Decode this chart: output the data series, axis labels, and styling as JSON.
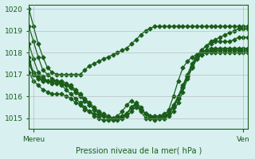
{
  "title": "Pression niveau de la mer( hPa )",
  "xlabel_left": "Mereu",
  "xlabel_right": "Ven",
  "ylim": [
    1014.5,
    1020.2
  ],
  "yticks": [
    1015,
    1016,
    1017,
    1018,
    1019,
    1020
  ],
  "bg_color": "#d8f0f0",
  "line_color": "#1a5e1a",
  "grid_color": "#aaaaaa",
  "n_points": 48,
  "series": [
    [
      1020.0,
      1019.2,
      1018.4,
      1017.8,
      1017.3,
      1017.1,
      1017.0,
      1017.0,
      1017.0,
      1017.0,
      1017.0,
      1017.0,
      1017.2,
      1017.4,
      1017.5,
      1017.6,
      1017.7,
      1017.8,
      1017.9,
      1018.0,
      1018.1,
      1018.2,
      1018.4,
      1018.6,
      1018.8,
      1019.0,
      1019.1,
      1019.2,
      1019.2,
      1019.2,
      1019.2,
      1019.2,
      1019.2,
      1019.2,
      1019.2,
      1019.2,
      1019.2,
      1019.2,
      1019.2,
      1019.2,
      1019.2,
      1019.2,
      1019.2,
      1019.2,
      1019.2,
      1019.2,
      1019.2,
      1019.2
    ],
    [
      1019.2,
      1018.5,
      1017.8,
      1017.2,
      1017.0,
      1016.8,
      1016.7,
      1016.5,
      1016.3,
      1016.1,
      1015.9,
      1015.7,
      1015.5,
      1015.3,
      1015.2,
      1015.1,
      1015.1,
      1015.0,
      1015.0,
      1015.0,
      1015.0,
      1015.2,
      1015.5,
      1015.7,
      1015.5,
      1015.2,
      1015.1,
      1015.0,
      1015.0,
      1015.0,
      1015.1,
      1015.3,
      1015.7,
      1016.2,
      1016.8,
      1017.3,
      1017.8,
      1018.1,
      1018.3,
      1018.5,
      1018.6,
      1018.7,
      1018.8,
      1018.9,
      1019.0,
      1019.1,
      1019.1,
      1019.1
    ],
    [
      1018.4,
      1017.7,
      1017.1,
      1016.9,
      1016.7,
      1016.6,
      1016.6,
      1016.6,
      1016.5,
      1016.4,
      1016.2,
      1016.0,
      1015.8,
      1015.6,
      1015.4,
      1015.2,
      1015.1,
      1015.0,
      1014.9,
      1014.9,
      1015.0,
      1015.1,
      1015.3,
      1015.5,
      1015.4,
      1015.2,
      1015.1,
      1015.1,
      1015.1,
      1015.2,
      1015.3,
      1015.6,
      1016.0,
      1016.5,
      1017.0,
      1017.5,
      1017.9,
      1018.1,
      1018.3,
      1018.4,
      1018.5,
      1018.5,
      1018.5,
      1018.5,
      1018.6,
      1018.7,
      1018.7,
      1018.7
    ],
    [
      1017.6,
      1017.1,
      1016.9,
      1016.8,
      1016.7,
      1016.7,
      1016.7,
      1016.7,
      1016.6,
      1016.5,
      1016.3,
      1016.1,
      1015.9,
      1015.7,
      1015.5,
      1015.3,
      1015.2,
      1015.1,
      1015.0,
      1015.0,
      1015.1,
      1015.2,
      1015.5,
      1015.6,
      1015.4,
      1015.2,
      1015.1,
      1015.1,
      1015.1,
      1015.1,
      1015.2,
      1015.5,
      1015.9,
      1016.4,
      1016.9,
      1017.4,
      1017.8,
      1018.0,
      1018.1,
      1018.2,
      1018.2,
      1018.2,
      1018.2,
      1018.2,
      1018.2,
      1018.2,
      1018.2,
      1018.2
    ],
    [
      1017.5,
      1017.0,
      1016.8,
      1016.7,
      1016.7,
      1016.7,
      1016.7,
      1016.6,
      1016.5,
      1016.4,
      1016.2,
      1016.0,
      1015.8,
      1015.6,
      1015.4,
      1015.2,
      1015.1,
      1015.0,
      1015.0,
      1015.0,
      1015.1,
      1015.2,
      1015.5,
      1015.6,
      1015.4,
      1015.2,
      1015.0,
      1015.0,
      1015.0,
      1015.0,
      1015.2,
      1015.5,
      1015.9,
      1016.4,
      1016.9,
      1017.3,
      1017.7,
      1017.9,
      1018.0,
      1018.1,
      1018.1,
      1018.1,
      1018.1,
      1018.1,
      1018.1,
      1018.1,
      1018.1,
      1018.1
    ],
    [
      1017.8,
      1017.0,
      1016.8,
      1016.7,
      1016.7,
      1016.7,
      1016.7,
      1016.6,
      1016.5,
      1016.4,
      1016.2,
      1016.0,
      1015.8,
      1015.6,
      1015.4,
      1015.2,
      1015.1,
      1015.0,
      1015.0,
      1015.0,
      1015.1,
      1015.2,
      1015.5,
      1015.6,
      1015.4,
      1015.2,
      1015.0,
      1015.0,
      1015.0,
      1015.0,
      1015.2,
      1015.5,
      1015.9,
      1016.4,
      1016.9,
      1017.3,
      1017.7,
      1017.9,
      1018.0,
      1018.1,
      1018.1,
      1018.1,
      1018.1,
      1018.1,
      1018.1,
      1018.1,
      1018.1,
      1018.1
    ],
    [
      1017.1,
      1016.7,
      1016.5,
      1016.3,
      1016.2,
      1016.1,
      1016.1,
      1016.1,
      1016.0,
      1015.9,
      1015.7,
      1015.6,
      1015.4,
      1015.3,
      1015.1,
      1015.0,
      1014.9,
      1014.9,
      1015.0,
      1015.1,
      1015.3,
      1015.6,
      1015.8,
      1015.6,
      1015.3,
      1015.0,
      1015.0,
      1014.9,
      1015.0,
      1015.1,
      1015.4,
      1016.0,
      1016.7,
      1017.3,
      1017.6,
      1017.8,
      1017.9,
      1018.0,
      1018.0,
      1018.0,
      1018.0,
      1018.0,
      1018.0,
      1018.0,
      1018.0,
      1018.0,
      1018.0,
      1018.0
    ]
  ]
}
